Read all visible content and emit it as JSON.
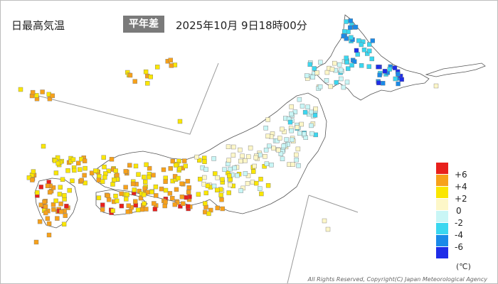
{
  "header": {
    "title": "日最高気温",
    "badge": "平年差",
    "datetime": "2025年10月 9日18時00分"
  },
  "legend": {
    "unit": "(℃)",
    "items": [
      {
        "label": "+6",
        "color": "#e8201c"
      },
      {
        "label": "+4",
        "color": "#f7a11a"
      },
      {
        "label": "+2",
        "color": "#fae600"
      },
      {
        "label": "0",
        "color": "#fdf7c8"
      },
      {
        "label": "-2",
        "color": "#c9f6f6"
      },
      {
        "label": "-4",
        "color": "#3ad7f0"
      },
      {
        "label": "-6",
        "color": "#1a8ae8"
      }
    ],
    "extra_color": "#1e2de8"
  },
  "map": {
    "coast_color": "#555555",
    "marker_border": "#777777"
  },
  "footer": {
    "copyright": "All Rights Reserved, Copyright(C) Japan Meteorological Agency"
  }
}
